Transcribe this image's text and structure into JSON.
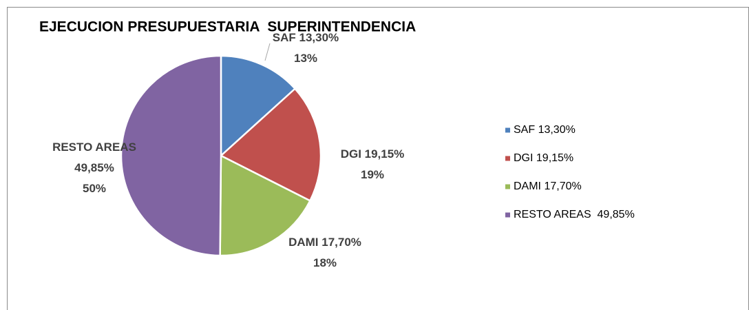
{
  "chart_data": {
    "type": "pie",
    "title": "EJECUCION PRESUPUESTARIA  SUPERINTENDENCIA",
    "categories": [
      "SAF 13,30%",
      "DGI 19,15%",
      "DAMI 17,70%",
      "RESTO AREAS  49,85%"
    ],
    "values": [
      13.3,
      19.15,
      17.7,
      49.85
    ],
    "value_labels": [
      "13%",
      "19%",
      "18%",
      "50%"
    ],
    "colors": [
      "#4f81bd",
      "#c0504d",
      "#9bbb59",
      "#8064a2"
    ],
    "legend": "right"
  }
}
